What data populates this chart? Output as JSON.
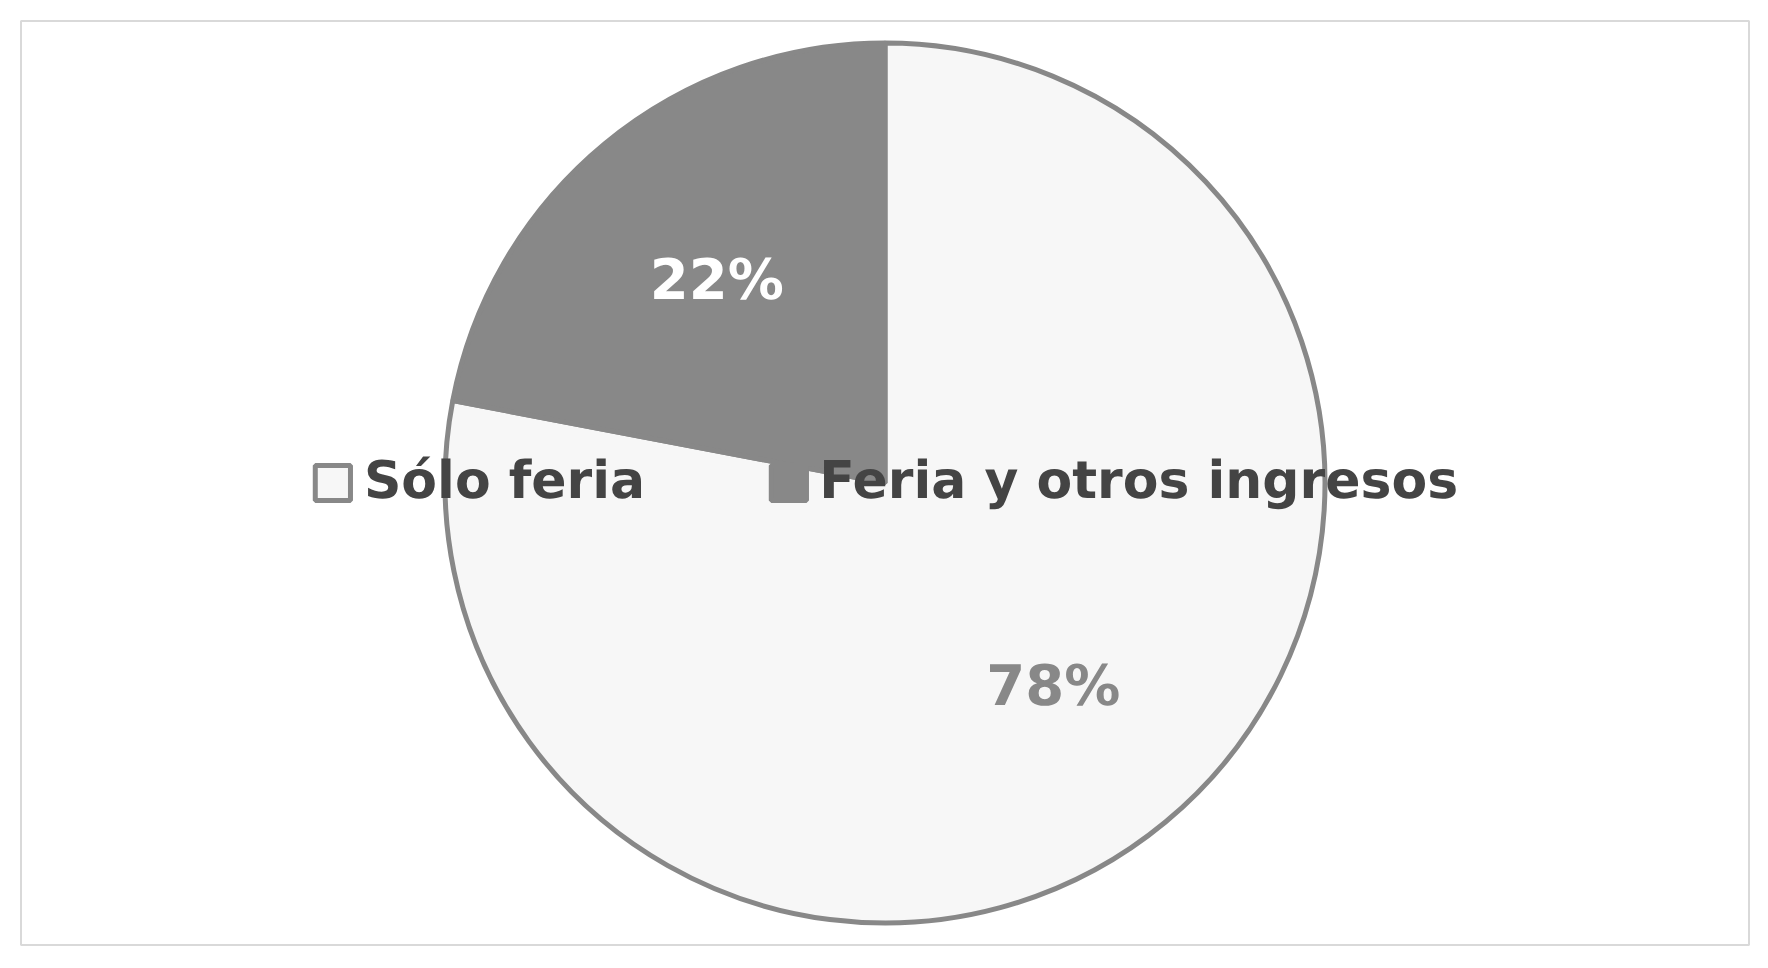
{
  "chart_data": {
    "type": "pie",
    "categories": [
      "Sólo feria",
      "Feria y otros ingresos"
    ],
    "values": [
      78,
      22
    ],
    "colors": [
      "#f7f7f7",
      "#888888"
    ],
    "value_labels": [
      "78%",
      "22%"
    ],
    "legend": "center"
  }
}
